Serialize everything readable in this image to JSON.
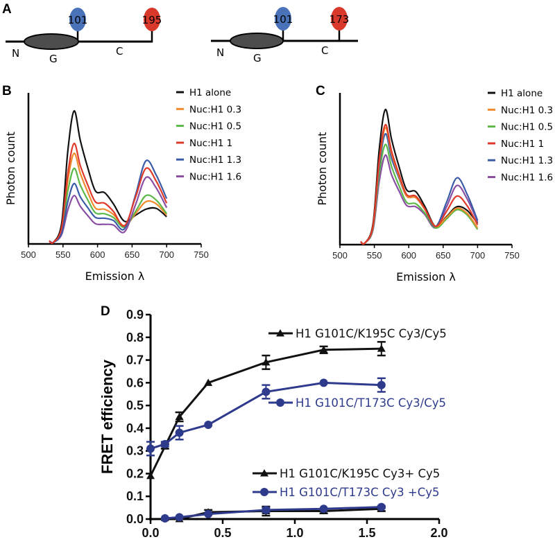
{
  "panels": {
    "a": "A",
    "b": "B",
    "c": "C",
    "d": "D"
  },
  "diagram": {
    "left": {
      "n": "N",
      "g": "G",
      "c": "C",
      "site1": "101",
      "site2": "195"
    },
    "right": {
      "n": "N",
      "g": "G",
      "c": "C",
      "site1": "101",
      "site2": "173"
    },
    "colors": {
      "site1": "#4a72b8",
      "site2": "#d9392a",
      "globular": "#4d4d4d"
    }
  },
  "chart_data": [
    {
      "panel": "B",
      "type": "line",
      "xlabel": "Emission λ",
      "ylabel": "Photon count",
      "xlim": [
        500,
        750
      ],
      "xticks": [
        500,
        550,
        600,
        650,
        700,
        750
      ],
      "y_units": "relative (no tick labels)",
      "legend": "top-right",
      "series": [
        {
          "name": "H1 alone",
          "color": "#111111",
          "peak_565": 0.88,
          "shoulder_605": 0.34,
          "valley_640": 0.15,
          "peak_670": 0.23,
          "end_700": 0.18
        },
        {
          "name": "Nuc:H1 0.3",
          "color": "#f08a2c",
          "peak_565": 0.6,
          "shoulder_605": 0.23,
          "valley_640": 0.12,
          "peak_670": 0.28,
          "end_700": 0.19
        },
        {
          "name": "Nuc:H1 0.5",
          "color": "#5cb848",
          "peak_565": 0.5,
          "shoulder_605": 0.2,
          "valley_640": 0.11,
          "peak_670": 0.32,
          "end_700": 0.2
        },
        {
          "name": "Nuc:H1 1",
          "color": "#e0392a",
          "peak_565": 0.665,
          "shoulder_605": 0.27,
          "valley_640": 0.12,
          "peak_670": 0.5,
          "end_700": 0.27
        },
        {
          "name": "Nuc:H1 1.3",
          "color": "#3a5ca8",
          "peak_565": 0.4,
          "shoulder_605": 0.17,
          "valley_640": 0.1,
          "peak_670": 0.55,
          "end_700": 0.3
        },
        {
          "name": "Nuc:H1 1.6",
          "color": "#8a4ea3",
          "peak_565": 0.32,
          "shoulder_605": 0.13,
          "valley_640": 0.08,
          "peak_670": 0.44,
          "end_700": 0.24
        }
      ]
    },
    {
      "panel": "C",
      "type": "line",
      "xlabel": "Emission λ",
      "ylabel": "Photon count",
      "xlim": [
        500,
        750
      ],
      "xticks": [
        500,
        550,
        600,
        650,
        700,
        750
      ],
      "y_units": "relative (no tick labels)",
      "legend": "top-right",
      "series": [
        {
          "name": "H1 alone",
          "color": "#111111",
          "peak_565": 0.89,
          "shoulder_605": 0.35,
          "valley_640": 0.12,
          "peak_670": 0.25,
          "end_700": 0.14
        },
        {
          "name": "Nuc:H1 0.3",
          "color": "#f08a2c",
          "peak_565": 0.77,
          "shoulder_605": 0.31,
          "valley_640": 0.12,
          "peak_670": 0.24,
          "end_700": 0.11
        },
        {
          "name": "Nuc:H1 0.5",
          "color": "#5cb848",
          "peak_565": 0.66,
          "shoulder_605": 0.27,
          "valley_640": 0.11,
          "peak_670": 0.23,
          "end_700": 0.1
        },
        {
          "name": "Nuc:H1 1",
          "color": "#e0392a",
          "peak_565": 0.79,
          "shoulder_605": 0.32,
          "valley_640": 0.12,
          "peak_670": 0.32,
          "end_700": 0.13
        },
        {
          "name": "Nuc:H1 1.3",
          "color": "#3a5ca8",
          "peak_565": 0.73,
          "shoulder_605": 0.31,
          "valley_640": 0.12,
          "peak_670": 0.44,
          "end_700": 0.16
        },
        {
          "name": "Nuc:H1 1.6",
          "color": "#8a4ea3",
          "peak_565": 0.59,
          "shoulder_605": 0.25,
          "valley_640": 0.11,
          "peak_670": 0.39,
          "end_700": 0.15
        }
      ]
    },
    {
      "panel": "D",
      "type": "line",
      "xlabel": "",
      "ylabel": "FRET efficiency",
      "xlim": [
        0,
        2.0
      ],
      "ylim": [
        0,
        0.9
      ],
      "xticks": [
        "0.0",
        "0.5",
        "1.0",
        "1.5",
        "2.0"
      ],
      "yticks": [
        "0.0",
        "0.1",
        "0.2",
        "0.3",
        "0.4",
        "0.5",
        "0.6",
        "0.7",
        "0.8",
        "0.9"
      ],
      "legend": "inline",
      "series": [
        {
          "name": "H1 G101C/K195C Cy3/Cy5",
          "color": "#111111",
          "marker": "triangle",
          "x": [
            0,
            0.1,
            0.2,
            0.4,
            0.8,
            1.2,
            1.6
          ],
          "y": [
            0.19,
            0.32,
            0.45,
            0.6,
            0.69,
            0.745,
            0.75
          ],
          "err": [
            0,
            0.01,
            0.02,
            0,
            0.03,
            0.015,
            0.03
          ]
        },
        {
          "name": "H1 G101C/T173C Cy3/Cy5",
          "color": "#2e3a8c",
          "marker": "circle",
          "x": [
            0,
            0.1,
            0.2,
            0.4,
            0.8,
            1.2,
            1.6
          ],
          "y": [
            0.31,
            0.33,
            0.38,
            0.415,
            0.56,
            0.6,
            0.59
          ],
          "err": [
            0.03,
            0.01,
            0.03,
            0,
            0.03,
            0,
            0.03
          ]
        },
        {
          "name": "H1 G101C/K195C Cy3+ Cy5",
          "color": "#111111",
          "marker": "triangle",
          "x": [
            0.1,
            0.2,
            0.4,
            0.8,
            1.2,
            1.6
          ],
          "y": [
            0.005,
            0.0,
            0.03,
            0.035,
            0.035,
            0.045
          ],
          "err": [
            0,
            0,
            0.01,
            0.02,
            0.01,
            0.01
          ]
        },
        {
          "name": "H1 G101C/T173C Cy3 +Cy5",
          "color": "#2e3a8c",
          "marker": "circle",
          "x": [
            0.1,
            0.2,
            0.4,
            0.8,
            1.2,
            1.6
          ],
          "y": [
            0.003,
            0.008,
            0.022,
            0.04,
            0.045,
            0.053
          ],
          "err": [
            0,
            0,
            0,
            0.01,
            0,
            0.005
          ]
        }
      ]
    }
  ]
}
